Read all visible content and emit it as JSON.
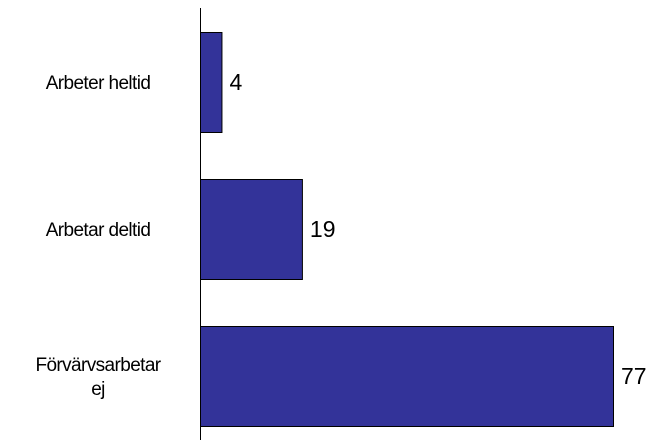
{
  "chart_data": {
    "type": "bar",
    "orientation": "horizontal",
    "categories": [
      [
        "Arbeter heltid"
      ],
      [
        "Arbetar deltid"
      ],
      [
        "Förvärvsarbetar",
        "ej"
      ]
    ],
    "values": [
      4,
      19,
      77
    ],
    "data_labels": [
      "4",
      "19",
      "77"
    ],
    "title": "",
    "xlabel": "",
    "ylabel": "",
    "xlim": [
      0,
      80
    ],
    "grid": false,
    "legend": "none",
    "colors": {
      "bar_fill": "#333399",
      "bar_stroke": "#000000",
      "axis": "#000000"
    }
  }
}
